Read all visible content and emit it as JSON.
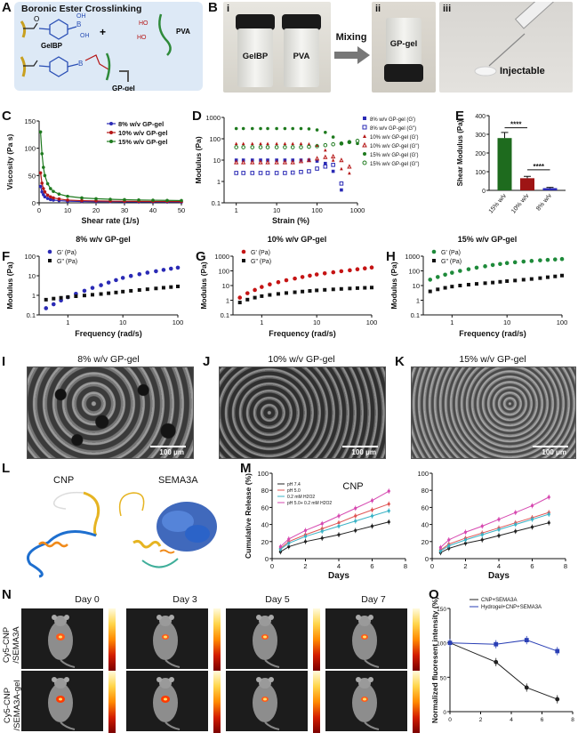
{
  "panels": {
    "A": {
      "letter": "A",
      "title": "Boronic Ester Crosslinking",
      "gelbp": "GelBP",
      "pva": "PVA",
      "gpgel": "GP-gel",
      "plus": "+",
      "ho": "HO",
      "oh": "OH",
      "bo": "B",
      "ho2": "HO",
      "o_label": "O"
    },
    "B": {
      "letter": "B",
      "sub_i": "i",
      "sub_ii": "ii",
      "sub_iii": "iii",
      "vial1": "GelBP",
      "vial2": "PVA",
      "mixing": "Mixing",
      "gpgel": "GP-gel",
      "injectable": "Injectable"
    },
    "C": {
      "letter": "C"
    },
    "D": {
      "letter": "D"
    },
    "E": {
      "letter": "E"
    },
    "F": {
      "letter": "F"
    },
    "G": {
      "letter": "G"
    },
    "H": {
      "letter": "H"
    },
    "I": {
      "letter": "I",
      "title": "8% w/v GP-gel",
      "scale": "100 μm"
    },
    "J": {
      "letter": "J",
      "title": "10% w/v GP-gel",
      "scale": "100 μm"
    },
    "K": {
      "letter": "K",
      "title": "15% w/v GP-gel",
      "scale": "100 μm"
    },
    "L": {
      "letter": "L",
      "cnp": "CNP",
      "sema": "SEMA3A"
    },
    "M": {
      "letter": "M"
    },
    "N": {
      "letter": "N",
      "day0": "Day 0",
      "day3": "Day 3",
      "day5": "Day 5",
      "day7": "Day 7",
      "row1a": "Cy5-CNP",
      "row1b": "/SEMA3A",
      "row2a": "Cy5-CNP",
      "row2b": "/SEMA3A-gel"
    },
    "O": {
      "letter": "O"
    }
  },
  "chart_data": [
    {
      "id": "C",
      "type": "line",
      "xlabel": "Shear rate (1/s)",
      "ylabel": "Viscosity (Pa s)",
      "xlim": [
        0,
        50
      ],
      "ylim": [
        0,
        150
      ],
      "xticks": [
        0,
        10,
        20,
        30,
        40,
        50
      ],
      "yticks": [
        0,
        50,
        100,
        150
      ],
      "legend_position": "top-right",
      "series": [
        {
          "name": "8% w/v GP-gel",
          "color": "#2a2ab5",
          "x": [
            0.5,
            1,
            1.5,
            2,
            3,
            4,
            5,
            7,
            10,
            15,
            20,
            25,
            30,
            35,
            40,
            45,
            50
          ],
          "y": [
            30,
            20,
            15,
            11,
            8,
            6,
            5,
            4,
            3,
            2.5,
            2,
            2,
            1.8,
            1.6,
            1.5,
            1.4,
            1.3
          ]
        },
        {
          "name": "10% w/v GP-gel",
          "color": "#b51616",
          "x": [
            0.5,
            1,
            1.5,
            2,
            3,
            4,
            5,
            7,
            10,
            15,
            20,
            25,
            30,
            35,
            40,
            45,
            50
          ],
          "y": [
            55,
            36,
            26,
            20,
            14,
            11,
            9,
            7,
            5,
            4,
            3.5,
            3,
            2.8,
            2.6,
            2.5,
            2.4,
            2.3
          ]
        },
        {
          "name": "15% w/v GP-gel",
          "color": "#1e7a1e",
          "x": [
            0.5,
            1,
            1.5,
            2,
            3,
            4,
            5,
            7,
            10,
            15,
            20,
            25,
            30,
            35,
            40,
            45,
            50
          ],
          "y": [
            130,
            90,
            65,
            50,
            35,
            26,
            21,
            16,
            12,
            9,
            7.5,
            6.5,
            5.8,
            5.2,
            4.8,
            4.5,
            4.2
          ]
        }
      ]
    },
    {
      "id": "D",
      "type": "scatter",
      "xlabel": "Strain (%)",
      "ylabel": "Modulus (Pa)",
      "xscale": "log",
      "yscale": "log",
      "xlim": [
        0.5,
        1000
      ],
      "ylim": [
        0.1,
        1000
      ],
      "xticks": [
        1,
        10,
        100,
        1000
      ],
      "yticks": [
        0.1,
        1,
        10,
        100,
        1000
      ],
      "legend_position": "right",
      "series": [
        {
          "name": "8% w/v GP-gel (G')",
          "color": "#2a2ab5",
          "marker": "square",
          "x": [
            1,
            1.5,
            2.5,
            4,
            6,
            10,
            16,
            25,
            40,
            63,
            100,
            160,
            250,
            400
          ],
          "y": [
            10,
            10,
            10,
            10,
            10,
            10,
            10,
            10,
            10,
            10,
            9,
            7,
            3,
            0.4
          ]
        },
        {
          "name": "8% w/v GP-gel (G\")",
          "color": "#2a2ab5",
          "marker": "square-open",
          "x": [
            1,
            1.5,
            2.5,
            4,
            6,
            10,
            16,
            25,
            40,
            63,
            100,
            160,
            250,
            400
          ],
          "y": [
            2.5,
            2.5,
            2.5,
            2.5,
            2.5,
            2.5,
            2.5,
            2.6,
            2.8,
            3,
            4,
            5,
            6,
            0.8
          ]
        },
        {
          "name": "10% w/v GP-gel (G')",
          "color": "#b51616",
          "marker": "triangle",
          "x": [
            1,
            1.5,
            2.5,
            4,
            6,
            10,
            16,
            25,
            40,
            63,
            100,
            160,
            250,
            400,
            630
          ],
          "y": [
            60,
            60,
            60,
            60,
            60,
            60,
            60,
            60,
            60,
            58,
            50,
            30,
            10,
            4,
            2.5
          ]
        },
        {
          "name": "10% w/v GP-gel (G\")",
          "color": "#b51616",
          "marker": "triangle-open",
          "x": [
            1,
            1.5,
            2.5,
            4,
            6,
            10,
            16,
            25,
            40,
            63,
            100,
            160,
            250,
            400,
            630
          ],
          "y": [
            8,
            8,
            8,
            8,
            8,
            8,
            8,
            8,
            9,
            10,
            12,
            14,
            15,
            10,
            5
          ]
        },
        {
          "name": "15% w/v GP-gel (G')",
          "color": "#1e7a1e",
          "marker": "circle",
          "x": [
            1,
            1.5,
            2.5,
            4,
            6,
            10,
            16,
            25,
            40,
            63,
            100,
            160,
            250,
            400,
            630,
            1000
          ],
          "y": [
            300,
            300,
            300,
            300,
            300,
            300,
            300,
            300,
            300,
            290,
            260,
            200,
            120,
            60,
            70,
            60
          ]
        },
        {
          "name": "15% w/v GP-gel (G\")",
          "color": "#1e7a1e",
          "marker": "circle-open",
          "x": [
            1,
            1.5,
            2.5,
            4,
            6,
            10,
            16,
            25,
            40,
            63,
            100,
            160,
            250,
            400,
            630,
            1000
          ],
          "y": [
            40,
            40,
            40,
            40,
            40,
            40,
            40,
            40,
            40,
            42,
            45,
            50,
            55,
            60,
            70,
            80
          ]
        }
      ]
    },
    {
      "id": "E",
      "type": "bar",
      "ylabel": "Shear Modulus (Pa)",
      "categories": [
        "15% w/v",
        "10% w/v",
        "8% w/v"
      ],
      "values": [
        280,
        65,
        12
      ],
      "errors": [
        30,
        10,
        4
      ],
      "colors": [
        "#1e6b1e",
        "#9e1414",
        "#2a2ab5"
      ],
      "ylim": [
        0,
        400
      ],
      "yticks": [
        0,
        100,
        200,
        300,
        400
      ],
      "annotations": [
        "****",
        "****"
      ]
    },
    {
      "id": "F",
      "type": "scatter",
      "title": "8% w/v GP-gel",
      "xlabel": "Frequency (rad/s)",
      "ylabel": "Modulus (Pa)",
      "xscale": "log",
      "yscale": "log",
      "xlim": [
        0.3,
        100
      ],
      "ylim": [
        0.1,
        100
      ],
      "xticks": [
        1,
        10,
        100
      ],
      "yticks": [
        0.1,
        1,
        10,
        100
      ],
      "legend_position": "top-left",
      "series": [
        {
          "name": "G' (Pa)",
          "color": "#2a2ab5",
          "x": [
            0.4,
            0.55,
            0.75,
            1,
            1.4,
            2,
            2.8,
            4,
            5.5,
            7.5,
            10,
            14,
            20,
            28,
            40,
            55,
            75,
            100
          ],
          "y": [
            0.22,
            0.35,
            0.55,
            0.8,
            1.2,
            1.7,
            2.4,
            3.3,
            4.5,
            6,
            7.8,
            9.8,
            12,
            14.5,
            17,
            20,
            23,
            26
          ]
        },
        {
          "name": "G\" (Pa)",
          "color": "#111111",
          "x": [
            0.4,
            0.55,
            0.75,
            1,
            1.4,
            2,
            2.8,
            4,
            5.5,
            7.5,
            10,
            14,
            20,
            28,
            40,
            55,
            75,
            100
          ],
          "y": [
            0.6,
            0.68,
            0.75,
            0.82,
            0.9,
            0.98,
            1.07,
            1.17,
            1.28,
            1.4,
            1.55,
            1.7,
            1.87,
            2.05,
            2.25,
            2.45,
            2.65,
            2.85
          ]
        }
      ]
    },
    {
      "id": "G",
      "type": "scatter",
      "title": "10% w/v GP-gel",
      "xlabel": "Frequency (rad/s)",
      "ylabel": "Modulus (Pa)",
      "xscale": "log",
      "yscale": "log",
      "xlim": [
        0.3,
        100
      ],
      "ylim": [
        0.1,
        1000
      ],
      "xticks": [
        1,
        10,
        100
      ],
      "yticks": [
        0.1,
        1,
        10,
        100,
        1000
      ],
      "legend_position": "top-left",
      "series": [
        {
          "name": "G' (Pa)",
          "color": "#c51414",
          "x": [
            0.4,
            0.55,
            0.75,
            1,
            1.4,
            2,
            2.8,
            4,
            5.5,
            7.5,
            10,
            14,
            20,
            28,
            40,
            55,
            75,
            100
          ],
          "y": [
            1.5,
            3,
            5,
            8,
            12,
            17,
            23,
            30,
            38,
            47,
            57,
            68,
            80,
            95,
            110,
            128,
            148,
            170
          ]
        },
        {
          "name": "G\" (Pa)",
          "color": "#111111",
          "x": [
            0.4,
            0.55,
            0.75,
            1,
            1.4,
            2,
            2.8,
            4,
            5.5,
            7.5,
            10,
            14,
            20,
            28,
            40,
            55,
            75,
            100
          ],
          "y": [
            0.7,
            1.1,
            1.5,
            1.9,
            2.3,
            2.7,
            3.1,
            3.5,
            3.9,
            4.3,
            4.7,
            5.1,
            5.5,
            5.9,
            6.3,
            6.7,
            7,
            7.3
          ]
        }
      ]
    },
    {
      "id": "H",
      "type": "scatter",
      "title": "15% w/v GP-gel",
      "xlabel": "Frequency (rad/s)",
      "ylabel": "Modulus (Pa)",
      "xscale": "log",
      "yscale": "log",
      "xlim": [
        0.3,
        100
      ],
      "ylim": [
        0.1,
        1000
      ],
      "xticks": [
        1,
        10,
        100
      ],
      "yticks": [
        0.1,
        1,
        10,
        100,
        1000
      ],
      "legend_position": "top-left",
      "series": [
        {
          "name": "G' (Pa)",
          "color": "#1e8a3a",
          "x": [
            0.4,
            0.55,
            0.75,
            1,
            1.4,
            2,
            2.8,
            4,
            5.5,
            7.5,
            10,
            14,
            20,
            28,
            40,
            55,
            75,
            100
          ],
          "y": [
            25,
            38,
            55,
            75,
            100,
            130,
            165,
            205,
            250,
            295,
            340,
            385,
            430,
            475,
            520,
            560,
            600,
            640
          ]
        },
        {
          "name": "G\" (Pa)",
          "color": "#111111",
          "x": [
            0.4,
            0.55,
            0.75,
            1,
            1.4,
            2,
            2.8,
            4,
            5.5,
            7.5,
            10,
            14,
            20,
            28,
            40,
            55,
            75,
            100
          ],
          "y": [
            4,
            5.5,
            7,
            8.5,
            10,
            11.5,
            13,
            14.5,
            16,
            18,
            20,
            22,
            25,
            28,
            32,
            37,
            42,
            48
          ]
        }
      ]
    },
    {
      "id": "M1",
      "type": "line",
      "title": "CNP",
      "xlabel": "Days",
      "ylabel": "Cumulative Release (%)",
      "xlim": [
        0,
        8
      ],
      "ylim": [
        0,
        100
      ],
      "xticks": [
        0,
        2,
        4,
        6,
        8
      ],
      "yticks": [
        0,
        20,
        40,
        60,
        80,
        100
      ],
      "legend_position": "top-left",
      "series": [
        {
          "name": "pH 7.4",
          "color": "#222222",
          "x": [
            0.5,
            1,
            2,
            3,
            4,
            5,
            6,
            7
          ],
          "y": [
            8,
            14,
            20,
            24,
            28,
            33,
            38,
            43
          ]
        },
        {
          "name": "pH 5.0",
          "color": "#e05555",
          "x": [
            0.5,
            1,
            2,
            3,
            4,
            5,
            6,
            7
          ],
          "y": [
            12,
            20,
            28,
            35,
            42,
            50,
            57,
            64
          ]
        },
        {
          "name": "0.2 mM H2O2",
          "color": "#3bb3c6",
          "x": [
            0.5,
            1,
            2,
            3,
            4,
            5,
            6,
            7
          ],
          "y": [
            11,
            18,
            26,
            32,
            38,
            44,
            50,
            56
          ]
        },
        {
          "name": "pH 5.0+ 0.2 mM H2O2",
          "color": "#d648b0",
          "x": [
            0.5,
            1,
            2,
            3,
            4,
            5,
            6,
            7
          ],
          "y": [
            14,
            23,
            33,
            41,
            50,
            59,
            68,
            79
          ]
        }
      ]
    },
    {
      "id": "M2",
      "type": "line",
      "xlabel": "Days",
      "ylabel": "",
      "xlim": [
        0,
        8
      ],
      "ylim": [
        0,
        100
      ],
      "xticks": [
        0,
        2,
        4,
        6,
        8
      ],
      "yticks": [
        0,
        20,
        40,
        60,
        80,
        100
      ],
      "series": [
        {
          "name": "pH 7.4",
          "color": "#222222",
          "x": [
            0.5,
            1,
            2,
            3,
            4,
            5,
            6,
            7
          ],
          "y": [
            7,
            12,
            18,
            22,
            27,
            32,
            37,
            42
          ]
        },
        {
          "name": "pH 5.0",
          "color": "#e05555",
          "x": [
            0.5,
            1,
            2,
            3,
            4,
            5,
            6,
            7
          ],
          "y": [
            10,
            17,
            24,
            30,
            36,
            42,
            48,
            54
          ]
        },
        {
          "name": "0.2 mM H2O2",
          "color": "#3bb3c6",
          "x": [
            0.5,
            1,
            2,
            3,
            4,
            5,
            6,
            7
          ],
          "y": [
            9,
            15,
            22,
            28,
            34,
            40,
            46,
            52
          ]
        },
        {
          "name": "pH 5.0+ 0.2 mM H2O2",
          "color": "#d648b0",
          "x": [
            0.5,
            1,
            2,
            3,
            4,
            5,
            6,
            7
          ],
          "y": [
            13,
            22,
            31,
            38,
            46,
            54,
            62,
            72
          ]
        }
      ]
    },
    {
      "id": "O",
      "type": "line",
      "xlabel": "",
      "ylabel": "Normalized fluoresent intensity (%)",
      "xlim": [
        0,
        8
      ],
      "ylim": [
        0,
        150
      ],
      "xticks": [
        0,
        2,
        4,
        6,
        8
      ],
      "yticks": [
        0,
        50,
        100,
        150
      ],
      "legend_position": "top",
      "series": [
        {
          "name": "CNP+SEMA3A",
          "color": "#222222",
          "x": [
            0,
            3,
            5,
            7
          ],
          "y": [
            100,
            72,
            35,
            18
          ]
        },
        {
          "name": "Hydrogel+CNP+SEMA3A",
          "color": "#2a3fb5",
          "x": [
            0,
            3,
            5,
            7
          ],
          "y": [
            100,
            98,
            104,
            88
          ]
        }
      ]
    }
  ]
}
